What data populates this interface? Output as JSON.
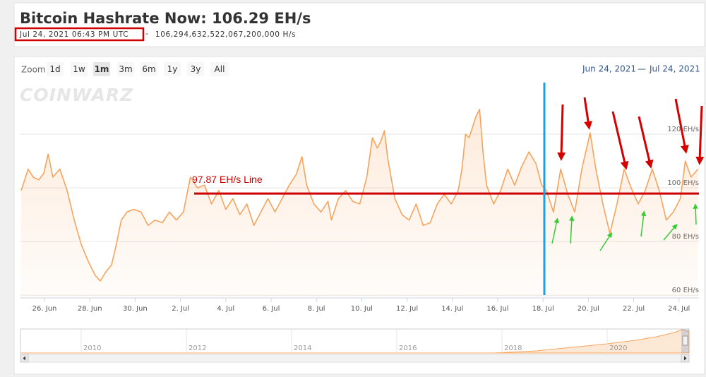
{
  "header": {
    "title": "Bitcoin Hashrate Now: 106.29 EH/s",
    "timestamp": "Jul 24, 2021 06:43 PM UTC",
    "separator": "-",
    "hashrate_full": "106,294,632,522,067,200,000 H/s"
  },
  "toolbar": {
    "zoom_label": "Zoom",
    "zoom_buttons": [
      "1d",
      "1w",
      "1m",
      "3m",
      "6m",
      "1y",
      "3y",
      "All"
    ],
    "active_button": "1m",
    "range_from": "Jun 24, 2021",
    "range_separator": "—",
    "range_to": "Jul 24, 2021"
  },
  "watermark": "COINWARZ",
  "chart_data": {
    "type": "area",
    "color": "#f7a35c",
    "x": [
      0.97,
      1.28,
      1.5,
      1.75,
      1.97,
      2.16,
      2.37,
      2.68,
      3.0,
      3.31,
      3.62,
      3.93,
      4.24,
      4.46,
      4.71,
      4.96,
      5.17,
      5.39,
      5.64,
      5.95,
      6.26,
      6.57,
      6.88,
      7.2,
      7.51,
      7.82,
      8.13,
      8.44,
      8.75,
      9.06,
      9.37,
      9.69,
      10.0,
      10.31,
      10.62,
      10.93,
      11.24,
      11.55,
      11.86,
      12.17,
      12.49,
      12.8,
      13.11,
      13.36,
      13.57,
      13.89,
      14.2,
      14.51,
      14.66,
      14.97,
      15.29,
      15.6,
      15.91,
      16.22,
      16.47,
      16.69,
      16.84,
      17.0,
      17.15,
      17.46,
      17.78,
      18.09,
      18.4,
      18.71,
      19.02,
      19.33,
      19.64,
      19.95,
      20.26,
      20.42,
      20.58,
      20.73,
      20.89,
      21.04,
      21.2,
      21.35,
      21.51,
      21.82,
      22.13,
      22.44,
      22.75,
      23.06,
      23.38,
      23.69,
      23.94,
      24.15,
      24.46,
      24.78,
      25.09,
      25.4,
      25.71,
      26.08,
      26.33,
      26.64,
      26.95,
      27.26,
      27.58,
      27.89,
      28.2,
      28.51,
      28.82,
      29.13,
      29.44,
      29.75,
      30.06,
      30.28,
      30.53,
      30.84
    ],
    "values": [
      99,
      107,
      104,
      103,
      105.5,
      112.6,
      104,
      107,
      99,
      88,
      79,
      72.6,
      67.4,
      65.3,
      68.7,
      71.3,
      79,
      88,
      91,
      92,
      91,
      86,
      88,
      87,
      91,
      88,
      91,
      104,
      100,
      101,
      94,
      99,
      92,
      96,
      90,
      94,
      86,
      91,
      96,
      91,
      96,
      101,
      105,
      111.6,
      101,
      94,
      91,
      95,
      88,
      96,
      99,
      95,
      94,
      104,
      118.7,
      114.8,
      117.4,
      121.3,
      110.8,
      96,
      90,
      88,
      94,
      86,
      87,
      94,
      97.6,
      94,
      99,
      107,
      120,
      118.7,
      122.6,
      126.6,
      129.2,
      113.4,
      101,
      94,
      99,
      107,
      101,
      108,
      113.4,
      109,
      101,
      99,
      91,
      107,
      97.6,
      91,
      107,
      120.5,
      107,
      94,
      83,
      94,
      107,
      100,
      94,
      99,
      107,
      99,
      88,
      91,
      96,
      110,
      104,
      107
    ],
    "xlim": [
      0.94,
      30.88
    ],
    "ylim": [
      59,
      139.2
    ],
    "xticks": [
      {
        "value": 2,
        "label": "26. Jun"
      },
      {
        "value": 4,
        "label": "28. Jun"
      },
      {
        "value": 6,
        "label": "30. Jun"
      },
      {
        "value": 8,
        "label": "2. Jul"
      },
      {
        "value": 10,
        "label": "4. Jul"
      },
      {
        "value": 12,
        "label": "6. Jul"
      },
      {
        "value": 14,
        "label": "8. Jul"
      },
      {
        "value": 16,
        "label": "10. Jul"
      },
      {
        "value": 18,
        "label": "12. Jul"
      },
      {
        "value": 20,
        "label": "14. Jul"
      },
      {
        "value": 22,
        "label": "16. Jul"
      },
      {
        "value": 24,
        "label": "18. Jul"
      },
      {
        "value": 26,
        "label": "20. Jul"
      },
      {
        "value": 28,
        "label": "22. Jul"
      },
      {
        "value": 30,
        "label": "24. Jul"
      }
    ],
    "yticks": [
      {
        "value": 60,
        "label": "60 EH/s"
      },
      {
        "value": 80,
        "label": "80 EH/s"
      },
      {
        "value": 100,
        "label": "100 EH/s"
      },
      {
        "value": 120,
        "label": "120 EH/s"
      }
    ],
    "grid": true,
    "reference_line": {
      "label": "97.87 EH/s Line",
      "value": 97.87,
      "color": "#cc0000"
    },
    "navigator_labels": [
      "2010",
      "2012",
      "2014",
      "2016",
      "2018",
      "2020"
    ]
  }
}
